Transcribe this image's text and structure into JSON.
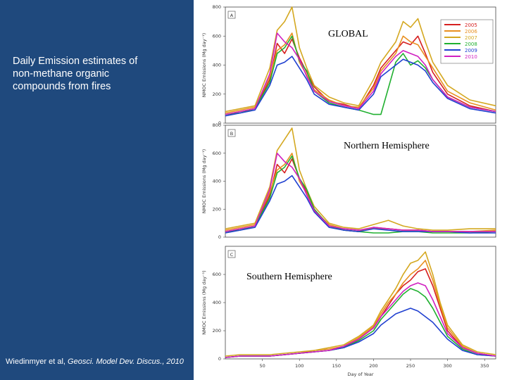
{
  "slide": {
    "caption": "Daily Emission estimates of non-methane organic compounds from fires",
    "citation_authors": "Wiedinmyer et al, ",
    "citation_journal": "Geosci. Model Dev. Discus., 2010"
  },
  "chart_data": [
    {
      "type": "line",
      "panel": "A",
      "title": "GLOBAL",
      "ylabel": "NMOC Emissions (Mg day⁻¹)",
      "xlabel": "",
      "xlim": [
        0,
        365
      ],
      "ylim": [
        0,
        800
      ],
      "yticks": [
        0,
        200,
        400,
        600,
        800
      ],
      "legend_position": "top-right",
      "series": [
        {
          "name": "2005",
          "color": "#d62020",
          "x": [
            0,
            20,
            40,
            60,
            70,
            80,
            90,
            100,
            110,
            120,
            140,
            160,
            180,
            200,
            210,
            230,
            240,
            250,
            260,
            270,
            280,
            300,
            330,
            365
          ],
          "y": [
            60,
            80,
            100,
            300,
            550,
            480,
            580,
            450,
            350,
            250,
            150,
            130,
            100,
            260,
            380,
            500,
            560,
            540,
            600,
            480,
            350,
            200,
            120,
            80
          ]
        },
        {
          "name": "2006",
          "color": "#e89020",
          "x": [
            0,
            20,
            40,
            60,
            70,
            80,
            90,
            100,
            110,
            120,
            140,
            160,
            180,
            200,
            210,
            230,
            240,
            250,
            260,
            270,
            280,
            300,
            330,
            365
          ],
          "y": [
            70,
            90,
            110,
            320,
            500,
            540,
            620,
            420,
            330,
            230,
            160,
            120,
            110,
            240,
            360,
            480,
            600,
            560,
            540,
            460,
            380,
            220,
            140,
            90
          ]
        },
        {
          "name": "2007",
          "color": "#d4a820",
          "x": [
            0,
            20,
            40,
            60,
            70,
            80,
            90,
            100,
            110,
            120,
            140,
            160,
            180,
            200,
            210,
            230,
            240,
            250,
            260,
            270,
            280,
            300,
            330,
            365
          ],
          "y": [
            80,
            100,
            120,
            380,
            640,
            700,
            800,
            520,
            380,
            260,
            180,
            140,
            120,
            300,
            420,
            560,
            700,
            660,
            720,
            560,
            420,
            260,
            160,
            120
          ]
        },
        {
          "name": "2008",
          "color": "#20b030",
          "x": [
            0,
            20,
            40,
            60,
            70,
            80,
            90,
            100,
            110,
            120,
            140,
            160,
            180,
            200,
            210,
            230,
            240,
            250,
            260,
            270,
            280,
            300,
            330,
            365
          ],
          "y": [
            60,
            70,
            100,
            280,
            480,
            520,
            600,
            430,
            360,
            220,
            140,
            110,
            90,
            60,
            60,
            420,
            480,
            400,
            430,
            380,
            300,
            180,
            110,
            80
          ]
        },
        {
          "name": "2009",
          "color": "#2040d0",
          "x": [
            0,
            20,
            40,
            60,
            70,
            80,
            90,
            100,
            110,
            120,
            140,
            160,
            180,
            200,
            210,
            230,
            240,
            250,
            260,
            270,
            280,
            300,
            330,
            365
          ],
          "y": [
            50,
            70,
            90,
            260,
            400,
            420,
            460,
            380,
            300,
            200,
            130,
            110,
            90,
            200,
            320,
            400,
            440,
            420,
            400,
            360,
            280,
            170,
            100,
            70
          ]
        },
        {
          "name": "2010",
          "color": "#d020c0",
          "x": [
            0,
            20,
            40,
            60,
            70,
            80,
            90,
            100,
            110,
            120,
            140,
            160,
            180,
            200,
            210,
            230,
            240,
            250,
            260,
            270,
            280,
            300,
            330,
            365
          ],
          "y": [
            60,
            80,
            100,
            340,
            620,
            560,
            520,
            440,
            320,
            220,
            150,
            120,
            100,
            220,
            340,
            460,
            500,
            480,
            460,
            400,
            300,
            180,
            110,
            80
          ]
        }
      ]
    },
    {
      "type": "line",
      "panel": "B",
      "title": "Northern Hemisphere",
      "ylabel": "NMOC Emissions (Mg day⁻¹)",
      "xlabel": "",
      "xlim": [
        0,
        365
      ],
      "ylim": [
        0,
        800
      ],
      "yticks": [
        0,
        200,
        400,
        600,
        800
      ],
      "series": [
        {
          "name": "2005",
          "color": "#d62020",
          "x": [
            0,
            20,
            40,
            60,
            70,
            80,
            90,
            100,
            110,
            120,
            140,
            160,
            180,
            200,
            220,
            240,
            260,
            280,
            300,
            330,
            365
          ],
          "y": [
            40,
            60,
            80,
            300,
            520,
            460,
            560,
            420,
            320,
            200,
            80,
            50,
            40,
            70,
            60,
            50,
            50,
            40,
            40,
            40,
            40
          ]
        },
        {
          "name": "2006",
          "color": "#e89020",
          "x": [
            0,
            20,
            40,
            60,
            70,
            80,
            90,
            100,
            110,
            120,
            140,
            160,
            180,
            200,
            220,
            240,
            260,
            280,
            300,
            330,
            365
          ],
          "y": [
            50,
            70,
            90,
            320,
            480,
            520,
            600,
            400,
            310,
            190,
            90,
            60,
            50,
            60,
            60,
            50,
            50,
            40,
            40,
            40,
            50
          ]
        },
        {
          "name": "2007",
          "color": "#d4a820",
          "x": [
            0,
            20,
            40,
            60,
            70,
            80,
            90,
            100,
            110,
            120,
            140,
            160,
            180,
            200,
            220,
            240,
            260,
            280,
            300,
            330,
            365
          ],
          "y": [
            60,
            80,
            100,
            360,
            620,
            700,
            780,
            480,
            340,
            220,
            100,
            70,
            60,
            90,
            120,
            80,
            60,
            50,
            50,
            60,
            60
          ]
        },
        {
          "name": "2008",
          "color": "#20b030",
          "x": [
            0,
            20,
            40,
            60,
            70,
            80,
            90,
            100,
            110,
            120,
            140,
            160,
            180,
            200,
            220,
            240,
            260,
            280,
            300,
            330,
            365
          ],
          "y": [
            40,
            50,
            80,
            280,
            460,
            500,
            580,
            420,
            340,
            200,
            80,
            50,
            40,
            30,
            30,
            40,
            40,
            30,
            30,
            30,
            40
          ]
        },
        {
          "name": "2009",
          "color": "#2040d0",
          "x": [
            0,
            20,
            40,
            60,
            70,
            80,
            90,
            100,
            110,
            120,
            140,
            160,
            180,
            200,
            220,
            240,
            260,
            280,
            300,
            330,
            365
          ],
          "y": [
            30,
            50,
            70,
            260,
            380,
            400,
            440,
            360,
            280,
            180,
            70,
            50,
            40,
            60,
            50,
            40,
            40,
            40,
            40,
            30,
            30
          ]
        },
        {
          "name": "2010",
          "color": "#d020c0",
          "x": [
            0,
            20,
            40,
            60,
            70,
            80,
            90,
            100,
            110,
            120,
            140,
            160,
            180,
            200,
            220,
            240,
            260,
            280,
            300,
            330,
            365
          ],
          "y": [
            40,
            60,
            80,
            340,
            600,
            540,
            500,
            420,
            300,
            190,
            80,
            60,
            50,
            70,
            60,
            50,
            50,
            40,
            40,
            40,
            40
          ]
        }
      ]
    },
    {
      "type": "line",
      "panel": "C",
      "title": "Southern Hemisphere",
      "ylabel": "NMOC Emissions (Mg day⁻¹)",
      "xlabel": "Day of Year",
      "xlim": [
        0,
        365
      ],
      "ylim": [
        0,
        800
      ],
      "yticks": [
        0,
        200,
        400,
        600
      ],
      "xticks": [
        50,
        100,
        150,
        200,
        250,
        300,
        350
      ],
      "series": [
        {
          "name": "2005",
          "color": "#d62020",
          "x": [
            0,
            20,
            40,
            60,
            80,
            100,
            120,
            140,
            160,
            180,
            200,
            210,
            220,
            230,
            240,
            250,
            260,
            270,
            280,
            290,
            300,
            320,
            340,
            365
          ],
          "y": [
            10,
            20,
            20,
            20,
            30,
            40,
            50,
            60,
            80,
            140,
            220,
            300,
            380,
            460,
            520,
            560,
            620,
            640,
            520,
            360,
            200,
            80,
            40,
            20
          ]
        },
        {
          "name": "2006",
          "color": "#e89020",
          "x": [
            0,
            20,
            40,
            60,
            80,
            100,
            120,
            140,
            160,
            180,
            200,
            210,
            220,
            230,
            240,
            250,
            260,
            270,
            280,
            290,
            300,
            320,
            340,
            365
          ],
          "y": [
            10,
            20,
            20,
            20,
            30,
            40,
            60,
            70,
            90,
            150,
            230,
            320,
            400,
            460,
            540,
            600,
            640,
            700,
            560,
            380,
            220,
            90,
            40,
            20
          ]
        },
        {
          "name": "2007",
          "color": "#d4a820",
          "x": [
            0,
            20,
            40,
            60,
            80,
            100,
            120,
            140,
            160,
            180,
            200,
            210,
            220,
            230,
            240,
            250,
            260,
            270,
            280,
            290,
            300,
            320,
            340,
            365
          ],
          "y": [
            20,
            30,
            30,
            30,
            40,
            50,
            60,
            80,
            100,
            160,
            240,
            340,
            420,
            500,
            600,
            680,
            700,
            760,
            600,
            400,
            240,
            100,
            50,
            30
          ]
        },
        {
          "name": "2008",
          "color": "#20b030",
          "x": [
            0,
            20,
            40,
            60,
            80,
            100,
            120,
            140,
            160,
            180,
            200,
            210,
            220,
            230,
            240,
            250,
            260,
            270,
            280,
            290,
            300,
            320,
            340,
            365
          ],
          "y": [
            10,
            20,
            20,
            20,
            30,
            40,
            50,
            60,
            80,
            130,
            200,
            280,
            340,
            400,
            460,
            500,
            480,
            440,
            360,
            260,
            160,
            70,
            30,
            20
          ]
        },
        {
          "name": "2009",
          "color": "#2040d0",
          "x": [
            0,
            20,
            40,
            60,
            80,
            100,
            120,
            140,
            160,
            180,
            200,
            210,
            220,
            230,
            240,
            250,
            260,
            270,
            280,
            290,
            300,
            320,
            340,
            365
          ],
          "y": [
            10,
            20,
            20,
            20,
            30,
            40,
            50,
            60,
            80,
            120,
            180,
            240,
            280,
            320,
            340,
            360,
            340,
            300,
            260,
            200,
            140,
            60,
            30,
            20
          ]
        },
        {
          "name": "2010",
          "color": "#d020c0",
          "x": [
            0,
            20,
            40,
            60,
            80,
            100,
            120,
            140,
            160,
            180,
            200,
            210,
            220,
            230,
            240,
            250,
            260,
            270,
            280,
            290,
            300,
            320,
            340,
            365
          ],
          "y": [
            10,
            20,
            20,
            20,
            30,
            40,
            50,
            60,
            90,
            140,
            220,
            300,
            360,
            420,
            480,
            520,
            540,
            520,
            420,
            300,
            180,
            80,
            40,
            20
          ]
        }
      ]
    }
  ]
}
